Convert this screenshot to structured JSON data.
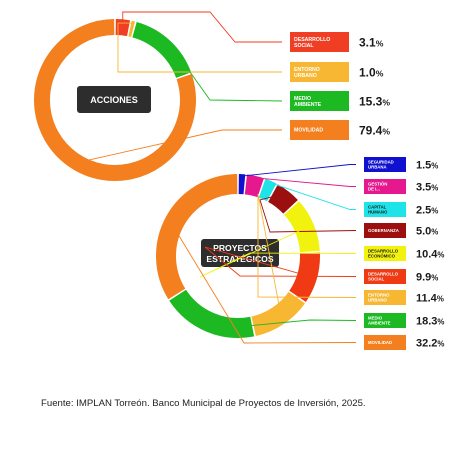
{
  "chart_data": [
    {
      "type": "pie",
      "center_label": "ACCIONES",
      "slices": [
        {
          "label": "DESARROLLO\nSOCIAL",
          "value": 3.1,
          "value_label": "3.1",
          "color": "#ef3e23"
        },
        {
          "label": "ENTORNO\nURBANO",
          "value": 1.0,
          "value_label": "1.0",
          "color": "#f7b733"
        },
        {
          "label": "MEDIO\nAMBIENTE",
          "value": 15.3,
          "value_label": "15.3",
          "color": "#1db922"
        },
        {
          "label": "MOVILIDAD",
          "value": 79.4,
          "value_label": "79.4",
          "color": "#f47f1e"
        }
      ]
    },
    {
      "type": "pie",
      "center_label": "PROYECTOS\nESTRATÉGICOS",
      "slices": [
        {
          "label": "SEGURIDAD\nURBANA",
          "value": 1.5,
          "value_label": "1.5",
          "color": "#1010d0"
        },
        {
          "label": "GESTIÓN\nDE I...",
          "value": 3.5,
          "value_label": "3.5",
          "color": "#e6188f"
        },
        {
          "label": "CAPITAL\nHUMANO",
          "value": 2.5,
          "value_label": "2.5",
          "color": "#1ee3e8"
        },
        {
          "label": "GOBERNANZA",
          "value": 5.0,
          "value_label": "5.0",
          "color": "#9b0f0f"
        },
        {
          "label": "DESARROLLO\nECONÓMICO",
          "value": 10.4,
          "value_label": "10.4",
          "color": "#f2f20f"
        },
        {
          "label": "DESARROLLO\nSOCIAL",
          "value": 9.9,
          "value_label": "9.9",
          "color": "#f03a14"
        },
        {
          "label": "ENTORNO\nURBANO",
          "value": 11.4,
          "value_label": "11.4",
          "color": "#f7b733"
        },
        {
          "label": "MEDIO\nAMBIENTE",
          "value": 18.3,
          "value_label": "18.3",
          "color": "#1db922"
        },
        {
          "label": "MOVILIDAD",
          "value": 32.2,
          "value_label": "32.2",
          "color": "#f47f1e"
        }
      ]
    }
  ],
  "percent_symbol": "%",
  "source": "Fuente: IMPLAN Torreón. Banco Municipal de Proyectos de Inversión, 2025."
}
